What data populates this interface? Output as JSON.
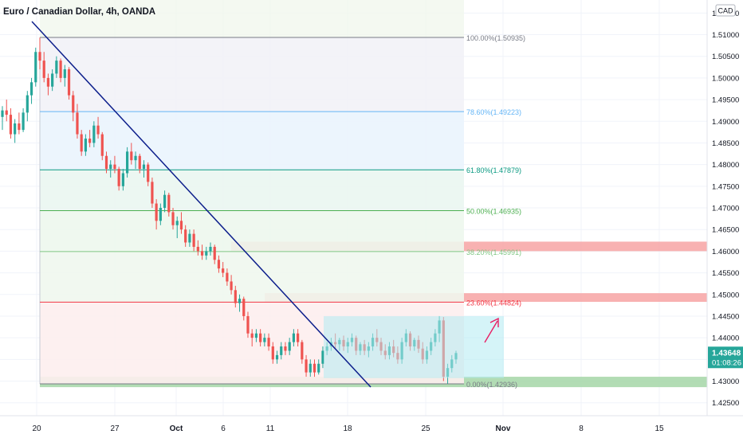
{
  "header": {
    "symbol": "Euro / Canadian Dollar, 4h, OANDA"
  },
  "price_axis": {
    "currency": "CAD"
  },
  "last_price": {
    "value": "1.43648",
    "countdown": "01:08:26",
    "color": "#26a69a"
  },
  "colors": {
    "up": "#26a69a",
    "down": "#ef5350",
    "trendline": "#0d1f8c",
    "arrow": "#e91e63"
  },
  "chart_data": {
    "type": "candlestick",
    "x_labels": [
      "20",
      "27",
      "Oct",
      "6",
      "11",
      "18",
      "25",
      "Nov",
      "8",
      "15"
    ],
    "y_ticks": [
      "1.51500",
      "1.51000",
      "1.50500",
      "1.50000",
      "1.49500",
      "1.49000",
      "1.48500",
      "1.48000",
      "1.47500",
      "1.47000",
      "1.46500",
      "1.46000",
      "1.45500",
      "1.45000",
      "1.44500",
      "1.44000",
      "1.43500",
      "1.43000",
      "1.42500"
    ],
    "y_range": [
      1.422,
      1.518
    ],
    "fibonacci": {
      "high": 1.50935,
      "low": 1.42936,
      "levels": [
        {
          "label": "100.00%(1.50935)",
          "price": 1.50935,
          "color": "#787b86"
        },
        {
          "label": "78.60%(1.49223)",
          "price": 1.49223,
          "color": "#64b5f6"
        },
        {
          "label": "61.80%(1.47879)",
          "price": 1.47879,
          "color": "#089981"
        },
        {
          "label": "50.00%(1.46935)",
          "price": 1.46935,
          "color": "#4caf50"
        },
        {
          "label": "38.20%(1.45991)",
          "price": 1.45991,
          "color": "#81c784"
        },
        {
          "label": "23.60%(1.44824)",
          "price": 1.44824,
          "color": "#f23645"
        },
        {
          "label": "0.00%(1.42936)",
          "price": 1.42936,
          "color": "#787b86"
        }
      ]
    },
    "zones": [
      {
        "name": "resistance-38",
        "from": 1.46,
        "to": 1.4622,
        "color": "#f7a3a3"
      },
      {
        "name": "resistance-23",
        "from": 1.4483,
        "to": 1.4503,
        "color": "#f7a3a3"
      },
      {
        "name": "support-0",
        "from": 1.4286,
        "to": 1.431,
        "color": "#a5d6a7"
      }
    ],
    "range_box": {
      "from": 1.4307,
      "to": 1.445
    },
    "candles": [
      [
        1.491,
        1.4935,
        1.488,
        1.4925
      ],
      [
        1.4925,
        1.495,
        1.49,
        1.4915
      ],
      [
        1.4915,
        1.493,
        1.486,
        1.487
      ],
      [
        1.487,
        1.4905,
        1.485,
        1.4895
      ],
      [
        1.4895,
        1.492,
        1.487,
        1.488
      ],
      [
        1.488,
        1.493,
        1.4875,
        1.492
      ],
      [
        1.492,
        1.497,
        1.49,
        1.496
      ],
      [
        1.496,
        1.5,
        1.494,
        1.499
      ],
      [
        1.499,
        1.507,
        1.498,
        1.506
      ],
      [
        1.506,
        1.5093,
        1.502,
        1.504
      ],
      [
        1.504,
        1.506,
        1.499,
        1.5
      ],
      [
        1.5,
        1.501,
        1.496,
        1.498
      ],
      [
        1.498,
        1.502,
        1.497,
        1.501
      ],
      [
        1.501,
        1.505,
        1.5,
        1.504
      ],
      [
        1.504,
        1.5045,
        1.499,
        1.5
      ],
      [
        1.5,
        1.503,
        1.498,
        1.502
      ],
      [
        1.502,
        1.5025,
        1.495,
        1.496
      ],
      [
        1.496,
        1.497,
        1.49,
        1.492
      ],
      [
        1.492,
        1.494,
        1.486,
        1.487
      ],
      [
        1.487,
        1.488,
        1.482,
        1.483
      ],
      [
        1.483,
        1.487,
        1.482,
        1.486
      ],
      [
        1.486,
        1.488,
        1.484,
        1.485
      ],
      [
        1.485,
        1.49,
        1.484,
        1.489
      ],
      [
        1.489,
        1.491,
        1.486,
        1.487
      ],
      [
        1.487,
        1.4875,
        1.481,
        1.482
      ],
      [
        1.482,
        1.483,
        1.478,
        1.479
      ],
      [
        1.479,
        1.481,
        1.477,
        1.48
      ],
      [
        1.48,
        1.482,
        1.478,
        1.479
      ],
      [
        1.479,
        1.4795,
        1.474,
        1.475
      ],
      [
        1.475,
        1.479,
        1.474,
        1.478
      ],
      [
        1.478,
        1.484,
        1.477,
        1.483
      ],
      [
        1.483,
        1.485,
        1.48,
        1.481
      ],
      [
        1.481,
        1.483,
        1.479,
        1.482
      ],
      [
        1.482,
        1.4825,
        1.478,
        1.479
      ],
      [
        1.479,
        1.481,
        1.477,
        1.48
      ],
      [
        1.48,
        1.4805,
        1.475,
        1.476
      ],
      [
        1.476,
        1.477,
        1.47,
        1.471
      ],
      [
        1.471,
        1.472,
        1.465,
        1.467
      ],
      [
        1.467,
        1.471,
        1.466,
        1.47
      ],
      [
        1.47,
        1.474,
        1.469,
        1.473
      ],
      [
        1.473,
        1.4735,
        1.468,
        1.469
      ],
      [
        1.469,
        1.47,
        1.465,
        1.466
      ],
      [
        1.466,
        1.468,
        1.463,
        1.467
      ],
      [
        1.467,
        1.469,
        1.464,
        1.465
      ],
      [
        1.465,
        1.466,
        1.461,
        1.462
      ],
      [
        1.462,
        1.465,
        1.461,
        1.464
      ],
      [
        1.464,
        1.465,
        1.46,
        1.461
      ],
      [
        1.461,
        1.4625,
        1.459,
        1.46
      ],
      [
        1.46,
        1.4615,
        1.458,
        1.459
      ],
      [
        1.459,
        1.461,
        1.458,
        1.46
      ],
      [
        1.46,
        1.462,
        1.459,
        1.461
      ],
      [
        1.461,
        1.4615,
        1.457,
        1.458
      ],
      [
        1.458,
        1.459,
        1.455,
        1.456
      ],
      [
        1.456,
        1.4575,
        1.454,
        1.455
      ],
      [
        1.455,
        1.456,
        1.452,
        1.453
      ],
      [
        1.453,
        1.4545,
        1.45,
        1.451
      ],
      [
        1.451,
        1.452,
        1.447,
        1.448
      ],
      [
        1.448,
        1.45,
        1.446,
        1.449
      ],
      [
        1.449,
        1.4495,
        1.444,
        1.445
      ],
      [
        1.445,
        1.446,
        1.44,
        1.441
      ],
      [
        1.441,
        1.442,
        1.438,
        1.44
      ],
      [
        1.44,
        1.442,
        1.439,
        1.441
      ],
      [
        1.441,
        1.442,
        1.438,
        1.439
      ],
      [
        1.439,
        1.441,
        1.438,
        1.44
      ],
      [
        1.44,
        1.441,
        1.437,
        1.438
      ],
      [
        1.438,
        1.439,
        1.434,
        1.435
      ],
      [
        1.435,
        1.437,
        1.434,
        1.436
      ],
      [
        1.436,
        1.439,
        1.435,
        1.438
      ],
      [
        1.438,
        1.439,
        1.436,
        1.437
      ],
      [
        1.437,
        1.44,
        1.436,
        1.439
      ],
      [
        1.439,
        1.442,
        1.438,
        1.441
      ],
      [
        1.441,
        1.442,
        1.438,
        1.439
      ],
      [
        1.439,
        1.4395,
        1.434,
        1.435
      ],
      [
        1.435,
        1.436,
        1.431,
        1.432
      ],
      [
        1.432,
        1.435,
        1.431,
        1.434
      ],
      [
        1.434,
        1.435,
        1.431,
        1.432
      ],
      [
        1.432,
        1.435,
        1.4315,
        1.434
      ],
      [
        1.434,
        1.438,
        1.433,
        1.437
      ],
      [
        1.437,
        1.439,
        1.436,
        1.438
      ],
      [
        1.438,
        1.44,
        1.437,
        1.439
      ],
      [
        1.439,
        1.441,
        1.4375,
        1.4385
      ],
      [
        1.4385,
        1.44,
        1.437,
        1.4395
      ],
      [
        1.4395,
        1.4405,
        1.437,
        1.438
      ],
      [
        1.438,
        1.44,
        1.4365,
        1.439
      ],
      [
        1.439,
        1.441,
        1.438,
        1.44
      ],
      [
        1.44,
        1.4405,
        1.436,
        1.437
      ],
      [
        1.437,
        1.439,
        1.436,
        1.4385
      ],
      [
        1.4385,
        1.4395,
        1.436,
        1.437
      ],
      [
        1.437,
        1.439,
        1.4355,
        1.438
      ],
      [
        1.438,
        1.441,
        1.437,
        1.44
      ],
      [
        1.44,
        1.442,
        1.438,
        1.439
      ],
      [
        1.439,
        1.44,
        1.436,
        1.437
      ],
      [
        1.437,
        1.4385,
        1.435,
        1.436
      ],
      [
        1.436,
        1.439,
        1.435,
        1.438
      ],
      [
        1.438,
        1.4395,
        1.4355,
        1.4365
      ],
      [
        1.4365,
        1.438,
        1.434,
        1.435
      ],
      [
        1.435,
        1.44,
        1.434,
        1.439
      ],
      [
        1.439,
        1.442,
        1.438,
        1.441
      ],
      [
        1.441,
        1.4415,
        1.437,
        1.438
      ],
      [
        1.438,
        1.44,
        1.437,
        1.4395
      ],
      [
        1.4395,
        1.4405,
        1.4365,
        1.4375
      ],
      [
        1.4375,
        1.439,
        1.434,
        1.435
      ],
      [
        1.435,
        1.438,
        1.434,
        1.437
      ],
      [
        1.437,
        1.44,
        1.436,
        1.439
      ],
      [
        1.439,
        1.442,
        1.438,
        1.441
      ],
      [
        1.441,
        1.445,
        1.439,
        1.444
      ],
      [
        1.444,
        1.4448,
        1.43,
        1.431
      ],
      [
        1.431,
        1.434,
        1.4294,
        1.433
      ],
      [
        1.433,
        1.436,
        1.432,
        1.435
      ],
      [
        1.435,
        1.437,
        1.434,
        1.43648
      ]
    ]
  }
}
